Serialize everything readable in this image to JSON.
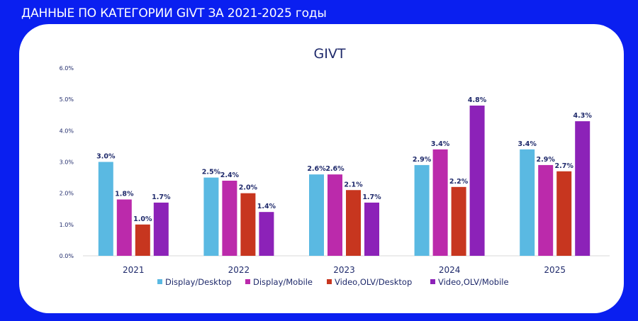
{
  "header": {
    "title": "ДАННЫЕ ПО КАТЕГОРИИ GIVT ЗА 2021-2025 годы"
  },
  "colors": {
    "background": "#0a1ff0",
    "text": "#1f2a6b"
  },
  "chart_data": {
    "type": "bar",
    "title": "GIVT",
    "xlabel": "",
    "ylabel": "",
    "ylim": [
      0,
      6
    ],
    "yticks": [
      0,
      1,
      2,
      3,
      4,
      5,
      6
    ],
    "ytick_labels": [
      "0.0%",
      "1.0%",
      "2.0%",
      "3.0%",
      "4.0%",
      "5.0%",
      "6.0%"
    ],
    "grid": false,
    "legend_position": "bottom",
    "categories": [
      "2021",
      "2022",
      "2023",
      "2024",
      "2025"
    ],
    "series": [
      {
        "name": "Display/Desktop",
        "color": "#5ab9e2",
        "values": [
          3.0,
          2.5,
          2.6,
          2.9,
          3.4
        ],
        "labels": [
          "3.0%",
          "2.5%",
          "2.6%",
          "2.9%",
          "3.4%"
        ]
      },
      {
        "name": "Display/Mobile",
        "color": "#bb2aab",
        "values": [
          1.8,
          2.4,
          2.6,
          3.4,
          2.9
        ],
        "labels": [
          "1.8%",
          "2.4%",
          "2.6%",
          "3.4%",
          "2.9%"
        ]
      },
      {
        "name": "Video,OLV/Desktop",
        "color": "#c7361f",
        "values": [
          1.0,
          2.0,
          2.1,
          2.2,
          2.7
        ],
        "labels": [
          "1.0%",
          "2.0%",
          "2.1%",
          "2.2%",
          "2.7%"
        ]
      },
      {
        "name": "Video,OLV/Mobile",
        "color": "#8c22b8",
        "values": [
          1.7,
          1.4,
          1.7,
          4.8,
          4.3
        ],
        "labels": [
          "1.7%",
          "1.4%",
          "1.7%",
          "4.8%",
          "4.3%"
        ]
      }
    ]
  }
}
